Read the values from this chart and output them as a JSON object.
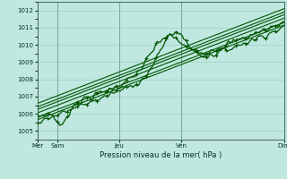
{
  "title": "",
  "xlabel": "Pression niveau de la mer( hPa )",
  "ylabel": "",
  "bg_color": "#c0e8e0",
  "grid_color": "#90c8bc",
  "line_colors": [
    "#005500",
    "#006600",
    "#007700",
    "#004400",
    "#006633",
    "#005522",
    "#007733"
  ],
  "x_tick_labels": [
    "Mer",
    "Sam",
    "Jeu",
    "Ven",
    "Dim"
  ],
  "x_tick_positions": [
    0,
    0.083,
    0.333,
    0.583,
    1.0
  ],
  "ylim": [
    1004.5,
    1012.5
  ],
  "xlim": [
    0,
    1
  ],
  "yticks": [
    1005,
    1006,
    1007,
    1008,
    1009,
    1010,
    1011,
    1012
  ],
  "n_steps": 200
}
